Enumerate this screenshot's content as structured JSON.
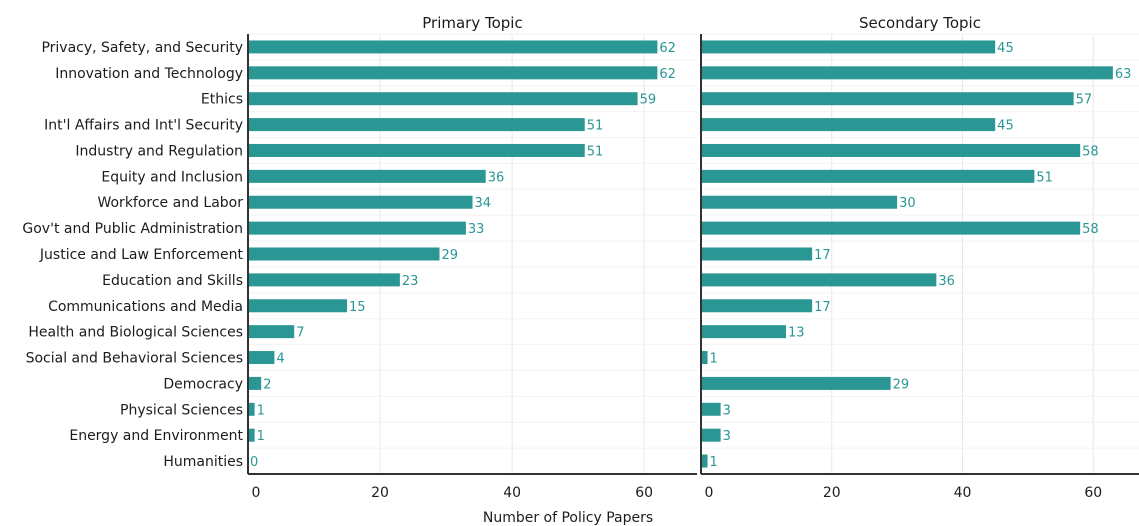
{
  "colors": {
    "bar": "#2a9795",
    "value_label": "#2a9795",
    "grid": "#e7e7e7",
    "axis": "#333333"
  },
  "chart_data": [
    {
      "type": "bar",
      "orientation": "horizontal",
      "title": "Primary Topic",
      "xlabel": "Number of Policy Papers",
      "xlim": [
        0,
        68
      ],
      "xticks": [
        0,
        20,
        40,
        60
      ],
      "grid": true,
      "categories": [
        "Privacy, Safety, and Security",
        "Innovation and Technology",
        "Ethics",
        "Int'l Affairs and Int'l Security",
        "Industry and Regulation",
        "Equity and Inclusion",
        "Workforce and Labor",
        "Gov't and Public Administration",
        "Justice and Law Enforcement",
        "Education and Skills",
        "Communications and Media",
        "Health and Biological Sciences",
        "Social and Behavioral Sciences",
        "Democracy",
        "Physical Sciences",
        "Energy and Environment",
        "Humanities"
      ],
      "values": [
        62,
        62,
        59,
        51,
        51,
        36,
        34,
        33,
        29,
        23,
        15,
        7,
        4,
        2,
        1,
        1,
        0
      ]
    },
    {
      "type": "bar",
      "orientation": "horizontal",
      "title": "Secondary Topic",
      "xlabel": "Number of Policy Papers",
      "xlim": [
        0,
        67
      ],
      "xticks": [
        0,
        20,
        40,
        60
      ],
      "grid": true,
      "categories": [
        "Privacy, Safety, and Security",
        "Innovation and Technology",
        "Ethics",
        "Int'l Affairs and Int'l Security",
        "Industry and Regulation",
        "Equity and Inclusion",
        "Workforce and Labor",
        "Gov't and Public Administration",
        "Justice and Law Enforcement",
        "Education and Skills",
        "Communications and Media",
        "Health and Biological Sciences",
        "Social and Behavioral Sciences",
        "Democracy",
        "Physical Sciences",
        "Energy and Environment",
        "Humanities"
      ],
      "values": [
        45,
        63,
        57,
        45,
        58,
        51,
        30,
        58,
        17,
        36,
        17,
        13,
        1,
        29,
        3,
        3,
        1
      ]
    }
  ]
}
